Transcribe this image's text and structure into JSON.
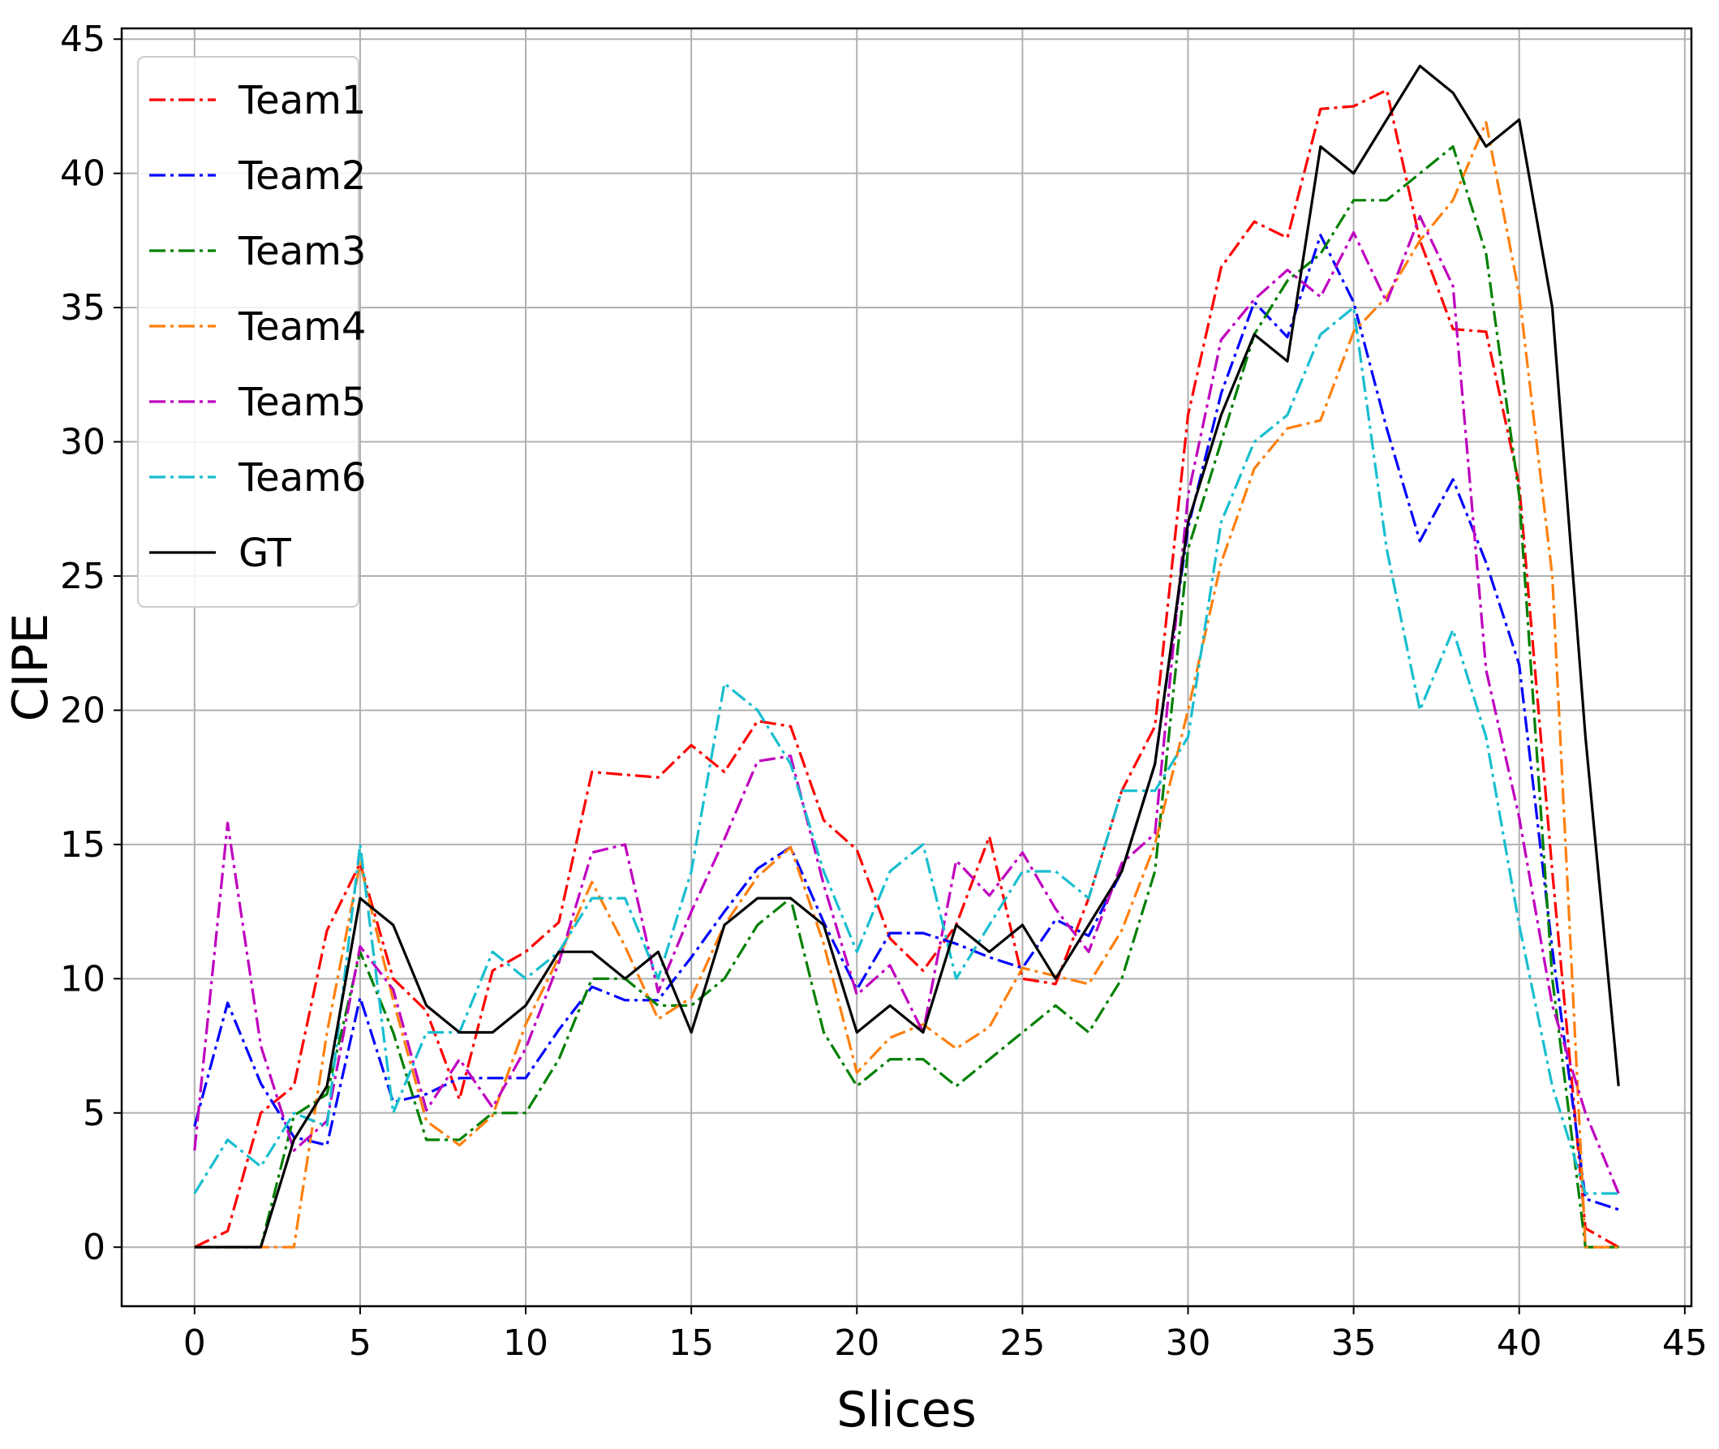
{
  "chart_data": {
    "type": "line",
    "xlabel": "Slices",
    "ylabel": "CIPE",
    "xlim": [
      -2.2,
      45.2
    ],
    "ylim": [
      -2.2,
      45.4
    ],
    "x_ticks": [
      0,
      5,
      10,
      15,
      20,
      25,
      30,
      35,
      40,
      45
    ],
    "y_ticks": [
      0,
      5,
      10,
      15,
      20,
      25,
      30,
      35,
      40,
      45
    ],
    "grid": true,
    "legend_position": "upper-left",
    "x": [
      0,
      1,
      2,
      3,
      4,
      5,
      6,
      7,
      8,
      9,
      10,
      11,
      12,
      13,
      14,
      15,
      16,
      17,
      18,
      19,
      20,
      21,
      22,
      23,
      24,
      25,
      26,
      27,
      28,
      29,
      30,
      31,
      32,
      33,
      34,
      35,
      36,
      37,
      38,
      39,
      40,
      41,
      42,
      43
    ],
    "series": [
      {
        "name": "Team1",
        "color": "#ff0000",
        "style": "dashdot",
        "values": [
          0,
          0.6,
          5,
          6,
          11.8,
          14.3,
          10,
          8.8,
          5.5,
          10.3,
          11,
          12.1,
          17.7,
          17.6,
          17.5,
          18.7,
          17.7,
          19.6,
          19.4,
          15.9,
          14.8,
          11.5,
          10.3,
          12,
          15.3,
          10,
          9.8,
          13,
          17,
          19.4,
          31,
          36.5,
          38.2,
          37.6,
          42.4,
          42.5,
          43.1,
          37.5,
          34.2,
          34.1,
          28.4,
          14,
          0.7,
          0
        ]
      },
      {
        "name": "Team2",
        "color": "#0000ff",
        "style": "dashdot",
        "values": [
          4.5,
          9.1,
          6.1,
          4.1,
          3.8,
          9.3,
          5.4,
          5.7,
          6.3,
          6.3,
          6.3,
          8.1,
          9.7,
          9.2,
          9.2,
          10.8,
          12.5,
          14.1,
          14.9,
          12.1,
          9.6,
          11.7,
          11.7,
          11.3,
          10.8,
          10.4,
          12.2,
          11.6,
          14,
          18,
          26.8,
          31.8,
          35.2,
          33.9,
          37.7,
          35.2,
          30.5,
          26.3,
          28.6,
          25.5,
          21.7,
          11.1,
          1.8,
          1.4
        ]
      },
      {
        "name": "Team3",
        "color": "#008000",
        "style": "dashdot",
        "values": [
          0,
          0,
          0,
          4.9,
          5.7,
          11,
          8,
          4,
          4,
          5,
          5,
          7,
          10,
          10,
          9,
          9,
          10,
          12,
          13,
          8,
          6,
          7,
          7,
          6,
          7,
          8,
          9,
          8,
          10,
          14,
          26,
          30,
          34,
          36,
          37,
          39,
          39,
          40,
          41,
          37,
          28,
          10,
          0,
          0
        ]
      },
      {
        "name": "Team4",
        "color": "#ff7f0e",
        "style": "dashdot",
        "values": [
          0,
          0,
          0,
          0,
          8,
          14.3,
          9.2,
          4.7,
          3.8,
          4.9,
          8.3,
          10.8,
          13.6,
          11.2,
          8.5,
          9.3,
          12,
          13.8,
          14.9,
          11.3,
          6.5,
          7.8,
          8.3,
          7.4,
          8.2,
          10.4,
          10.1,
          9.8,
          11.8,
          15,
          20,
          25.5,
          29,
          30.5,
          30.8,
          34.1,
          35.4,
          37.5,
          39,
          41.9,
          35.5,
          25,
          0,
          0
        ]
      },
      {
        "name": "Team5",
        "color": "#bf00bf",
        "style": "dashdot",
        "values": [
          3.6,
          15.8,
          7.5,
          3.6,
          4.7,
          11.2,
          9.6,
          5.1,
          7,
          5.2,
          7.4,
          10.6,
          14.7,
          15,
          9.5,
          12.5,
          15.2,
          18.1,
          18.3,
          13.5,
          9.4,
          10.5,
          8,
          14.4,
          13.1,
          14.7,
          12.6,
          11,
          14.3,
          15.4,
          28,
          33.8,
          35.3,
          36.4,
          35.4,
          37.8,
          35.2,
          38.4,
          35.8,
          21.5,
          16,
          9,
          5,
          2
        ]
      },
      {
        "name": "Team6",
        "color": "#17becf",
        "style": "dashdot",
        "values": [
          2,
          4,
          3,
          5,
          4.5,
          15,
          5,
          8,
          8,
          11,
          10,
          11,
          13,
          13,
          10,
          14,
          21,
          20,
          18,
          14,
          11,
          14,
          15,
          10,
          12,
          14,
          14,
          13,
          17,
          17,
          19,
          27,
          30,
          31,
          34,
          35,
          26,
          20,
          23,
          19,
          12,
          6,
          2,
          2
        ]
      },
      {
        "name": "GT",
        "color": "#000000",
        "style": "solid",
        "values": [
          0,
          0,
          0,
          4,
          6,
          13,
          12,
          9,
          8,
          8,
          9,
          11,
          11,
          10,
          11,
          8,
          12,
          13,
          13,
          12,
          8,
          9,
          8,
          12,
          11,
          12,
          10,
          12,
          14,
          18,
          27,
          31,
          34,
          33,
          41,
          40,
          42,
          44,
          43,
          41,
          42,
          35,
          19,
          6
        ]
      }
    ]
  }
}
